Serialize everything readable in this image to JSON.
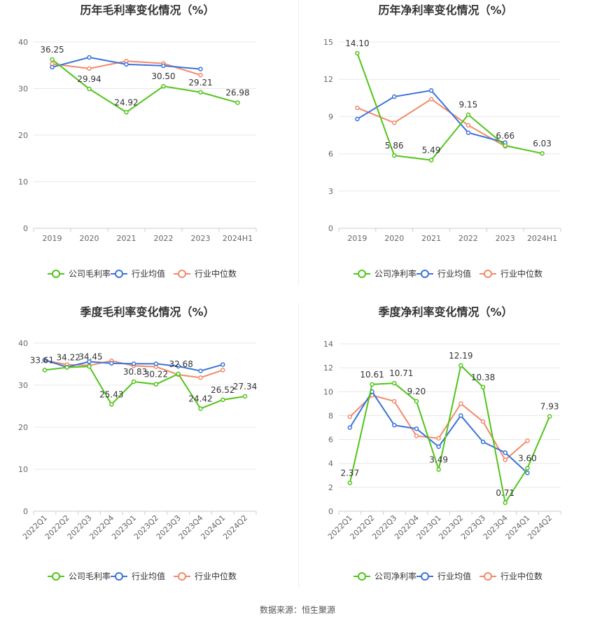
{
  "source": "数据来源：恒生聚源",
  "colors": {
    "company": "#52c41a",
    "avg": "#3b73d9",
    "median": "#f28a6a",
    "grid": "#e8e8e8",
    "axis": "#999999",
    "text": "#666666",
    "title": "#333333"
  },
  "chart_data": [
    {
      "type": "line",
      "title": "历年毛利率变化情况（%）",
      "categories": [
        "2019",
        "2020",
        "2021",
        "2022",
        "2023",
        "2024H1"
      ],
      "ylim": [
        0,
        40
      ],
      "yticks": [
        0,
        10,
        20,
        30,
        40
      ],
      "rotate_labels": false,
      "series": [
        {
          "name": "公司毛利率",
          "key": "company",
          "values": [
            36.25,
            29.94,
            24.92,
            30.5,
            29.21,
            26.98
          ],
          "labels": [
            "36.25",
            "29.94",
            "24.92",
            "30.50",
            "29.21",
            "26.98"
          ]
        },
        {
          "name": "行业均值",
          "key": "avg",
          "values": [
            34.6,
            36.7,
            35.2,
            34.9,
            34.2,
            null
          ]
        },
        {
          "name": "行业中位数",
          "key": "median",
          "values": [
            35.3,
            34.3,
            35.9,
            35.4,
            32.9,
            null
          ]
        }
      ],
      "legend": [
        "公司毛利率",
        "行业均值",
        "行业中位数"
      ]
    },
    {
      "type": "line",
      "title": "历年净利率变化情况（%）",
      "categories": [
        "2019",
        "2020",
        "2021",
        "2022",
        "2023",
        "2024H1"
      ],
      "ylim": [
        0,
        15
      ],
      "yticks": [
        0,
        3,
        6,
        9,
        12,
        15
      ],
      "rotate_labels": false,
      "series": [
        {
          "name": "公司净利率",
          "key": "company",
          "values": [
            14.1,
            5.86,
            5.49,
            9.15,
            6.66,
            6.03
          ],
          "labels": [
            "14.10",
            "5.86",
            "5.49",
            "9.15",
            "6.66",
            "6.03"
          ]
        },
        {
          "name": "行业均值",
          "key": "avg",
          "values": [
            8.8,
            10.6,
            11.1,
            7.7,
            6.9,
            null
          ]
        },
        {
          "name": "行业中位数",
          "key": "median",
          "values": [
            9.7,
            8.5,
            10.4,
            8.3,
            6.6,
            null
          ]
        }
      ],
      "legend": [
        "公司净利率",
        "行业均值",
        "行业中位数"
      ]
    },
    {
      "type": "line",
      "title": "季度毛利率变化情况（%）",
      "categories": [
        "2022Q1",
        "2022Q2",
        "2022Q3",
        "2022Q4",
        "2023Q1",
        "2023Q2",
        "2023Q3",
        "2023Q4",
        "2024Q1",
        "2024Q2"
      ],
      "ylim": [
        0,
        40
      ],
      "yticks": [
        0,
        10,
        20,
        30,
        40
      ],
      "rotate_labels": true,
      "series": [
        {
          "name": "公司毛利率",
          "key": "company",
          "values": [
            33.61,
            34.22,
            34.45,
            25.43,
            30.83,
            30.22,
            32.68,
            24.42,
            26.52,
            27.34
          ],
          "labels": [
            "33.61",
            "34.22",
            "34.45",
            "25.43",
            "30.83",
            "30.22",
            "32.68",
            "24.42",
            "26.52",
            "27.34"
          ]
        },
        {
          "name": "行业均值",
          "key": "avg",
          "values": [
            36.0,
            34.3,
            35.6,
            35.2,
            35.1,
            35.1,
            34.5,
            33.4,
            34.9,
            null
          ]
        },
        {
          "name": "行业中位数",
          "key": "median",
          "values": [
            35.9,
            34.9,
            34.7,
            35.8,
            34.6,
            34.4,
            32.5,
            31.8,
            33.6,
            null
          ]
        }
      ],
      "legend": [
        "公司毛利率",
        "行业均值",
        "行业中位数"
      ]
    },
    {
      "type": "line",
      "title": "季度净利率变化情况（%）",
      "categories": [
        "2022Q1",
        "2022Q2",
        "2022Q3",
        "2022Q4",
        "2023Q1",
        "2023Q2",
        "2023Q3",
        "2023Q4",
        "2024Q1",
        "2024Q2"
      ],
      "ylim": [
        0,
        14
      ],
      "yticks": [
        0,
        2,
        4,
        6,
        8,
        10,
        12,
        14
      ],
      "rotate_labels": true,
      "series": [
        {
          "name": "公司净利率",
          "key": "company",
          "values": [
            2.37,
            10.61,
            10.71,
            9.2,
            3.49,
            12.19,
            10.38,
            0.71,
            3.6,
            7.93
          ],
          "labels": [
            "2.37",
            "10.61",
            "10.71",
            "9.20",
            "3.49",
            "12.19",
            "10.38",
            "0.71",
            "3.60",
            "7.93"
          ]
        },
        {
          "name": "行业均值",
          "key": "avg",
          "values": [
            7.0,
            10.0,
            7.2,
            6.9,
            5.4,
            8.0,
            5.8,
            4.9,
            3.2,
            null
          ]
        },
        {
          "name": "行业中位数",
          "key": "median",
          "values": [
            7.9,
            9.7,
            9.2,
            6.3,
            6.1,
            9.0,
            7.5,
            4.3,
            5.9,
            null
          ]
        }
      ],
      "legend": [
        "公司净利率",
        "行业均值",
        "行业中位数"
      ]
    }
  ]
}
